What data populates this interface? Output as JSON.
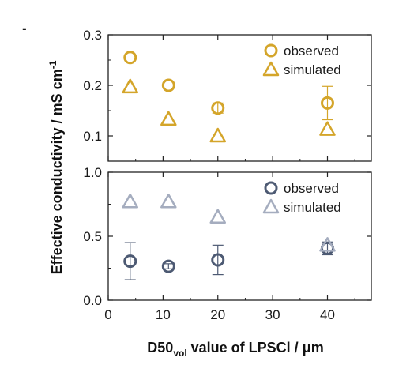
{
  "chart_data": [
    {
      "type": "scatter",
      "panel": "top",
      "x_ticks": [
        0,
        10,
        20,
        30,
        40
      ],
      "xlim": [
        0,
        48
      ],
      "ylim": [
        0.05,
        0.3
      ],
      "y_ticks": [
        0.1,
        0.2,
        0.3
      ],
      "y_tick_labels": [
        "0.1",
        "0.2",
        "0.3"
      ],
      "legend_position": "top-right",
      "series": [
        {
          "name": "observed",
          "marker": "circle",
          "color": "#d4a52a",
          "points": [
            {
              "x": 4,
              "y": 0.255
            },
            {
              "x": 11,
              "y": 0.2
            },
            {
              "x": 20,
              "y": 0.155,
              "err": 0.01
            },
            {
              "x": 40,
              "y": 0.165,
              "err": 0.033
            }
          ]
        },
        {
          "name": "simulated",
          "marker": "triangle",
          "color": "#d4a52a",
          "points": [
            {
              "x": 4,
              "y": 0.197
            },
            {
              "x": 11,
              "y": 0.133
            },
            {
              "x": 20,
              "y": 0.1
            },
            {
              "x": 40,
              "y": 0.113
            }
          ]
        }
      ]
    },
    {
      "type": "scatter",
      "panel": "bottom",
      "x_ticks": [
        0,
        10,
        20,
        30,
        40
      ],
      "x_tick_labels": [
        "0",
        "10",
        "20",
        "30",
        "40"
      ],
      "xlim": [
        0,
        48
      ],
      "ylim": [
        0,
        1.0
      ],
      "y_ticks": [
        0.0,
        0.5,
        1.0
      ],
      "y_tick_labels": [
        "0.0",
        "0.5",
        "1.0"
      ],
      "legend_position": "top-right",
      "series": [
        {
          "name": "observed",
          "marker": "circle",
          "color": "#4d5a73",
          "points": [
            {
              "x": 4,
              "y": 0.305,
              "err": 0.145
            },
            {
              "x": 11,
              "y": 0.265,
              "err": 0.02
            },
            {
              "x": 20,
              "y": 0.315,
              "err": 0.115
            },
            {
              "x": 40,
              "y": 0.405,
              "err": 0.05
            }
          ]
        },
        {
          "name": "simulated",
          "marker": "triangle",
          "color": "#a5adbf",
          "points": [
            {
              "x": 4,
              "y": 0.77
            },
            {
              "x": 11,
              "y": 0.77
            },
            {
              "x": 20,
              "y": 0.65
            },
            {
              "x": 40,
              "y": 0.43
            }
          ]
        }
      ]
    }
  ],
  "labels": {
    "ylabel_text": "Effective conductivity / mS cm",
    "ylabel_sup": "-1",
    "xlabel_main": "D50",
    "xlabel_sub": "vol",
    "xlabel_rest": " value of LPSCl / μm"
  },
  "extra_ticks_label": "-"
}
